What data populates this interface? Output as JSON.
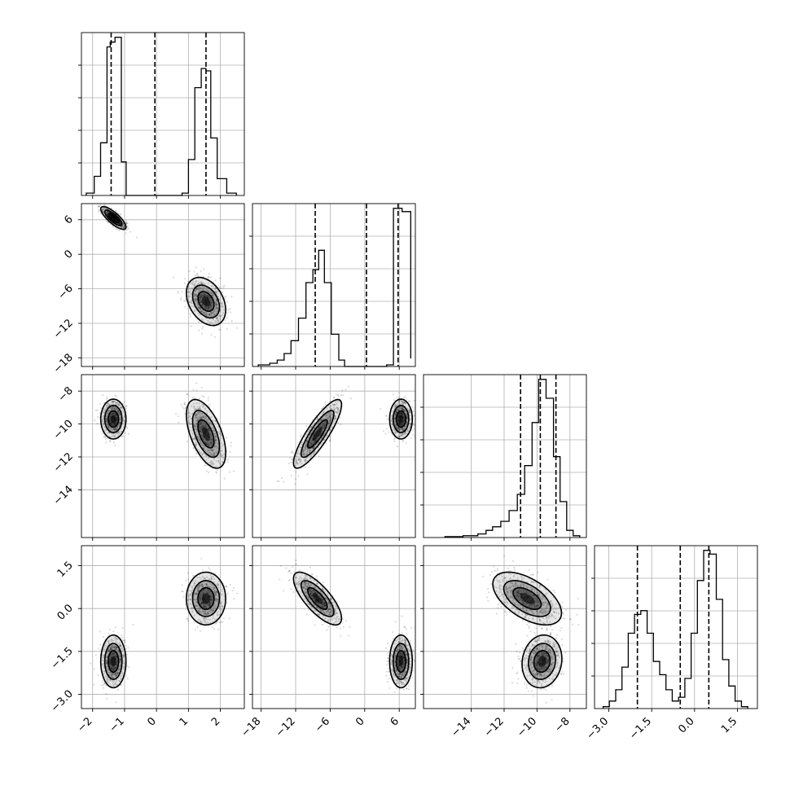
{
  "chart_data": {
    "type": "corner",
    "grid": true,
    "parameters": [
      {
        "range": [
          -2.35,
          2.75
        ],
        "ticks": [
          -2,
          -1,
          0,
          1,
          2
        ],
        "tick_labels": [
          "−2",
          "−1",
          "0",
          "1",
          "2"
        ],
        "hist": {
          "edges": [
            -2.2,
            -1.95,
            -1.75,
            -1.55,
            -1.45,
            -1.3,
            -1.1,
            -0.95,
            -0.8,
            0.0,
            0.5,
            0.8,
            1.0,
            1.2,
            1.4,
            1.55,
            1.7,
            1.9,
            2.2,
            2.5
          ],
          "counts": [
            1,
            8,
            22,
            62,
            64,
            66,
            14,
            0,
            0,
            0,
            0,
            1,
            15,
            45,
            53,
            52,
            24,
            7,
            1
          ]
        },
        "quantiles": [
          -1.42,
          -0.05,
          1.55
        ]
      },
      {
        "range": [
          -19.5,
          8.8
        ],
        "ticks": [
          -18,
          -12,
          -6,
          0,
          6
        ],
        "tick_labels": [
          "−18",
          "−12",
          "−6",
          "0",
          "6"
        ],
        "hist": {
          "edges": [
            -18.5,
            -16.5,
            -15.2,
            -14.0,
            -12.8,
            -11.5,
            -10.2,
            -9.0,
            -8.0,
            -7.0,
            -5.8,
            -4.5,
            -3.5,
            3.8,
            5.0,
            6.5,
            8.0
          ],
          "counts": [
            1,
            2,
            4,
            8,
            16,
            30,
            52,
            60,
            72,
            52,
            20,
            4,
            0,
            1,
            98,
            96,
            5
          ]
        },
        "quantiles": [
          -8.6,
          0.3,
          5.8
        ]
      },
      {
        "range": [
          -16.9,
          -7.0
        ],
        "ticks": [
          -14,
          -12,
          -10,
          -8
        ],
        "tick_labels": [
          "−14",
          "−12",
          "−10",
          "−8"
        ],
        "hist": {
          "edges": [
            -15.6,
            -14.5,
            -13.6,
            -13.1,
            -12.7,
            -12.2,
            -11.7,
            -11.2,
            -10.75,
            -10.3,
            -9.9,
            -9.45,
            -9.0,
            -8.6,
            -8.2,
            -7.8,
            -7.4
          ],
          "counts": [
            1,
            2,
            4,
            8,
            12,
            18,
            30,
            48,
            80,
            128,
            176,
            155,
            90,
            40,
            8,
            2
          ]
        },
        "quantiles": [
          -11.0,
          -9.8,
          -8.85
        ]
      },
      {
        "range": [
          -3.5,
          2.2
        ],
        "ticks": [
          -3.0,
          -1.5,
          0.0,
          1.5
        ],
        "tick_labels": [
          "−3.0",
          "−1.5",
          "0.0",
          "1.5"
        ],
        "hist": {
          "edges": [
            -3.2,
            -2.98,
            -2.76,
            -2.54,
            -2.32,
            -2.1,
            -1.88,
            -1.66,
            -1.44,
            -1.22,
            -1.0,
            -0.78,
            -0.56,
            -0.34,
            -0.12,
            0.1,
            0.32,
            0.54,
            0.76,
            0.98,
            1.2,
            1.42,
            1.64,
            1.86
          ],
          "counts": [
            1,
            4,
            10,
            22,
            40,
            50,
            52,
            40,
            25,
            18,
            10,
            4,
            6,
            16,
            40,
            68,
            84,
            82,
            58,
            26,
            12,
            4,
            1
          ]
        },
        "quantiles": [
          -2.0,
          -0.5,
          0.5
        ]
      }
    ],
    "clusters": [
      {
        "mean": [
          -1.35,
          6.3,
          -9.7,
          -1.85
        ],
        "sd": [
          0.18,
          0.9,
          0.55,
          0.42
        ],
        "corr": [
          [
            0,
            1,
            -0.8
          ],
          [
            2,
            3,
            0.1
          ]
        ]
      },
      {
        "mean": [
          1.55,
          -8.2,
          -10.6,
          0.35
        ],
        "sd": [
          0.28,
          1.9,
          0.95,
          0.42
        ],
        "corr": [
          [
            0,
            1,
            -0.35
          ],
          [
            0,
            2,
            -0.55
          ],
          [
            1,
            2,
            0.85
          ],
          [
            1,
            3,
            -0.75
          ],
          [
            2,
            3,
            -0.55
          ]
        ]
      }
    ]
  }
}
